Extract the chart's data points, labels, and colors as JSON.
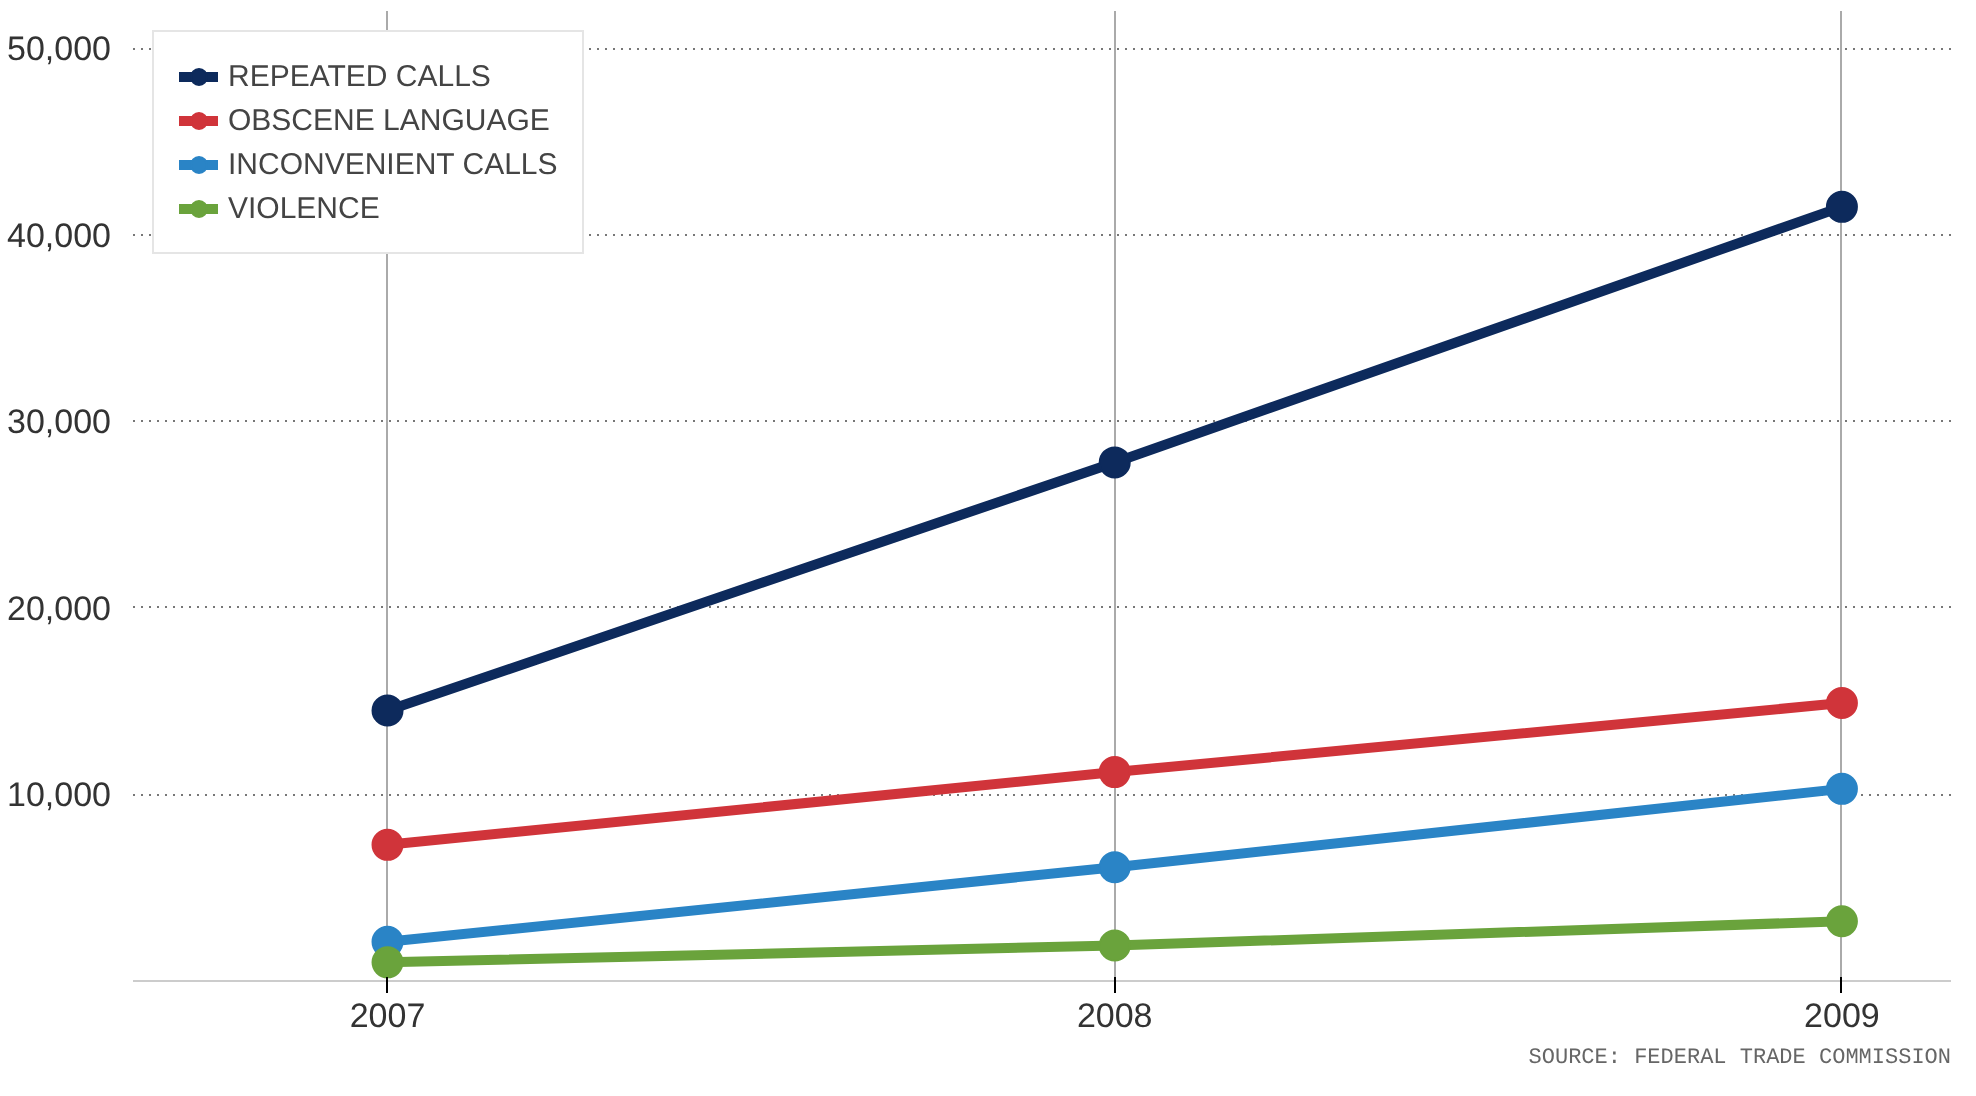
{
  "chart_data": {
    "type": "line",
    "categories": [
      "2007",
      "2008",
      "2009"
    ],
    "series": [
      {
        "name": "REPEATED CALLS",
        "color": "#0d2a5c",
        "values": [
          14500,
          27800,
          41500
        ]
      },
      {
        "name": "OBSCENE LANGUAGE",
        "color": "#d0343a",
        "values": [
          7300,
          11200,
          14900
        ]
      },
      {
        "name": "INCONVENIENT CALLS",
        "color": "#2a84c6",
        "values": [
          2100,
          6100,
          10300
        ]
      },
      {
        "name": "VIOLENCE",
        "color": "#6aa33c",
        "values": [
          1000,
          1900,
          3200
        ]
      }
    ],
    "ylim": [
      0,
      52000
    ],
    "yticks": [
      {
        "value": 0,
        "label": null
      },
      {
        "value": 10000,
        "label": "10,000"
      },
      {
        "value": 20000,
        "label": "20,000"
      },
      {
        "value": 30000,
        "label": "30,000"
      },
      {
        "value": 40000,
        "label": "40,000"
      },
      {
        "value": 50000,
        "label": "50,000"
      }
    ],
    "grid": true,
    "legend": "top left",
    "marker": "circle",
    "line_style": "solid",
    "annotations": [
      "SOURCE: FEDERAL TRADE COMMISSION"
    ]
  }
}
